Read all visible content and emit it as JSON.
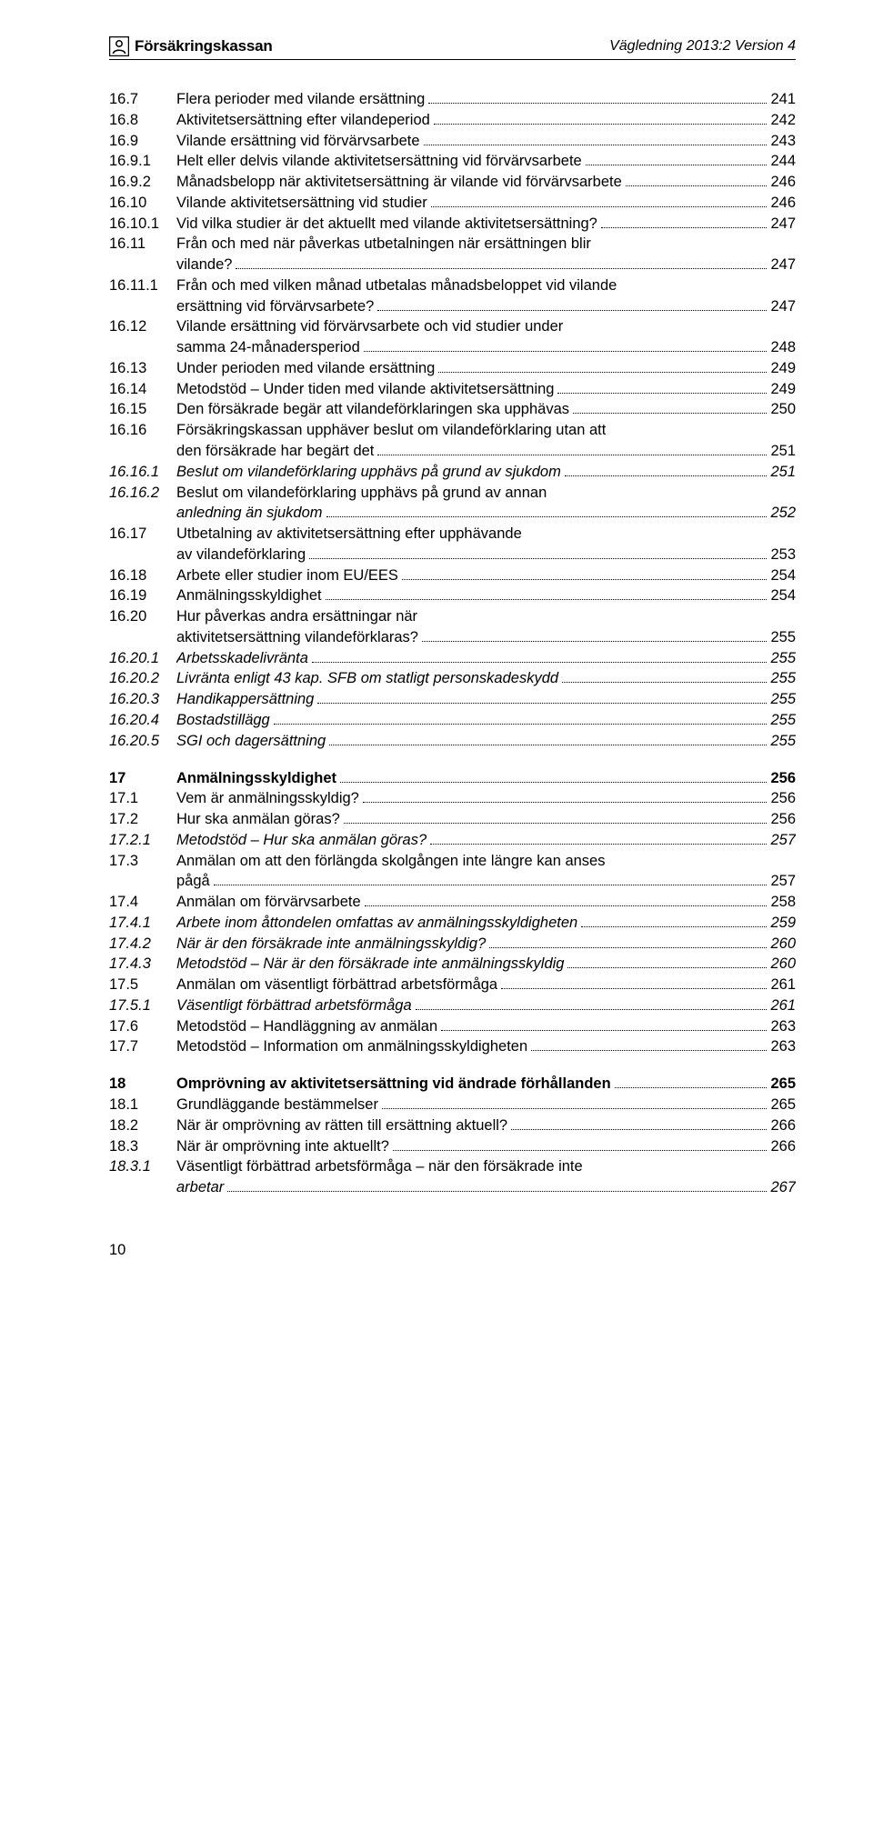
{
  "header": {
    "org_name": "Försäkringskassan",
    "doc_version": "Vägledning 2013:2 Version 4"
  },
  "page_number": "10",
  "toc": [
    {
      "num": "16.7",
      "title": "Flera perioder med vilande ersättning",
      "page": "241",
      "style": ""
    },
    {
      "num": "16.8",
      "title": "Aktivitetsersättning efter vilandeperiod",
      "page": "242",
      "style": ""
    },
    {
      "num": "16.9",
      "title": "Vilande ersättning vid förvärvsarbete",
      "page": "243",
      "style": ""
    },
    {
      "num": "16.9.1",
      "title": "Helt eller delvis vilande aktivitetsersättning vid förvärvsarbete",
      "page": "244",
      "style": ""
    },
    {
      "num": "16.9.2",
      "title": "Månadsbelopp när aktivitetsersättning är vilande vid förvärvsarbete",
      "page": "246",
      "style": ""
    },
    {
      "num": "16.10",
      "title": "Vilande aktivitetsersättning vid studier",
      "page": "246",
      "style": ""
    },
    {
      "num": "16.10.1",
      "title": "Vid vilka studier är det aktuellt med vilande aktivitetsersättning?",
      "page": "247",
      "style": ""
    },
    {
      "num": "16.11",
      "title_lines": [
        "Från och med när påverkas utbetalningen när ersättningen blir",
        "vilande?"
      ],
      "page": "247",
      "style": ""
    },
    {
      "num": "16.11.1",
      "title_lines": [
        "Från och med vilken månad utbetalas månadsbeloppet vid vilande",
        "ersättning vid förvärvsarbete?"
      ],
      "page": "247",
      "style": ""
    },
    {
      "num": "16.12",
      "title_lines": [
        "Vilande ersättning vid förvärvsarbete och vid studier under",
        "samma 24-månadersperiod"
      ],
      "page": "248",
      "style": ""
    },
    {
      "num": "16.13",
      "title": "Under perioden med vilande ersättning",
      "page": "249",
      "style": ""
    },
    {
      "num": "16.14",
      "title": "Metodstöd – Under tiden med vilande aktivitetsersättning",
      "page": "249",
      "style": ""
    },
    {
      "num": "16.15",
      "title": "Den försäkrade begär att vilandeförklaringen ska upphävas",
      "page": "250",
      "style": ""
    },
    {
      "num": "16.16",
      "title_lines": [
        "Försäkringskassan upphäver beslut om vilandeförklaring utan att",
        "den försäkrade har begärt det"
      ],
      "page": "251",
      "style": ""
    },
    {
      "num": "16.16.1",
      "title": "Beslut om vilandeförklaring upphävs på grund av sjukdom",
      "page": "251",
      "style": "italic"
    },
    {
      "num": "16.16.2",
      "title_lines": [
        "Beslut om vilandeförklaring upphävs på grund av annan",
        "anledning än sjukdom"
      ],
      "page": "252",
      "style": "italic"
    },
    {
      "num": "16.17",
      "title_lines": [
        "Utbetalning av aktivitetsersättning efter upphävande",
        "av vilandeförklaring"
      ],
      "page": "253",
      "style": ""
    },
    {
      "num": "16.18",
      "title": "Arbete eller studier inom EU/EES",
      "page": "254",
      "style": ""
    },
    {
      "num": "16.19",
      "title": "Anmälningsskyldighet",
      "page": "254",
      "style": ""
    },
    {
      "num": "16.20",
      "title_lines": [
        "Hur påverkas andra ersättningar när",
        "aktivitetsersättning vilandeförklaras?"
      ],
      "page": "255",
      "style": ""
    },
    {
      "num": "16.20.1",
      "title": "Arbetsskadelivränta",
      "page": "255",
      "style": "italic"
    },
    {
      "num": "16.20.2",
      "title": "Livränta enligt 43 kap. SFB om statligt personskadeskydd",
      "page": "255",
      "style": "italic"
    },
    {
      "num": "16.20.3",
      "title": "Handikappersättning",
      "page": "255",
      "style": "italic"
    },
    {
      "num": "16.20.4",
      "title": "Bostadstillägg",
      "page": "255",
      "style": "italic"
    },
    {
      "num": "16.20.5",
      "title": "SGI och dagersättning",
      "page": "255",
      "style": "italic"
    },
    {
      "gap": true
    },
    {
      "num": "17",
      "title": "Anmälningsskyldighet",
      "page": "256",
      "style": "bold"
    },
    {
      "num": "17.1",
      "title": "Vem är anmälningsskyldig?",
      "page": "256",
      "style": ""
    },
    {
      "num": "17.2",
      "title": "Hur ska anmälan göras?",
      "page": "256",
      "style": ""
    },
    {
      "num": "17.2.1",
      "title": "Metodstöd – Hur ska anmälan göras?",
      "page": "257",
      "style": "italic"
    },
    {
      "num": "17.3",
      "title_lines": [
        "Anmälan om att den förlängda skolgången inte längre kan anses",
        "pågå"
      ],
      "page": "257",
      "style": ""
    },
    {
      "num": "17.4",
      "title": "Anmälan om förvärvsarbete",
      "page": "258",
      "style": ""
    },
    {
      "num": "17.4.1",
      "title": "Arbete inom åttondelen omfattas av anmälningsskyldigheten",
      "page": "259",
      "style": "italic"
    },
    {
      "num": "17.4.2",
      "title": "När är den försäkrade inte anmälningsskyldig?",
      "page": "260",
      "style": "italic"
    },
    {
      "num": "17.4.3",
      "title": "Metodstöd – När är den försäkrade inte anmälningsskyldig",
      "page": "260",
      "style": "italic"
    },
    {
      "num": "17.5",
      "title": "Anmälan om väsentligt förbättrad arbetsförmåga",
      "page": "261",
      "style": ""
    },
    {
      "num": "17.5.1",
      "title": "Väsentligt förbättrad arbetsförmåga",
      "page": "261",
      "style": "italic"
    },
    {
      "num": "17.6",
      "title": "Metodstöd – Handläggning av anmälan",
      "page": "263",
      "style": ""
    },
    {
      "num": "17.7",
      "title": "Metodstöd – Information om anmälningsskyldigheten",
      "page": "263",
      "style": ""
    },
    {
      "gap": true
    },
    {
      "num": "18",
      "title": "Omprövning av aktivitetsersättning vid ändrade förhållanden",
      "page": "265",
      "style": "bold"
    },
    {
      "num": "18.1",
      "title": "Grundläggande bestämmelser",
      "page": "265",
      "style": ""
    },
    {
      "num": "18.2",
      "title": "När är omprövning av rätten till ersättning aktuell?",
      "page": "266",
      "style": ""
    },
    {
      "num": "18.3",
      "title": "När är omprövning inte aktuellt?",
      "page": "266",
      "style": ""
    },
    {
      "num": "18.3.1",
      "title_lines": [
        "Väsentligt förbättrad arbetsförmåga – när den försäkrade inte",
        "arbetar"
      ],
      "page": "267",
      "style": "italic"
    }
  ]
}
